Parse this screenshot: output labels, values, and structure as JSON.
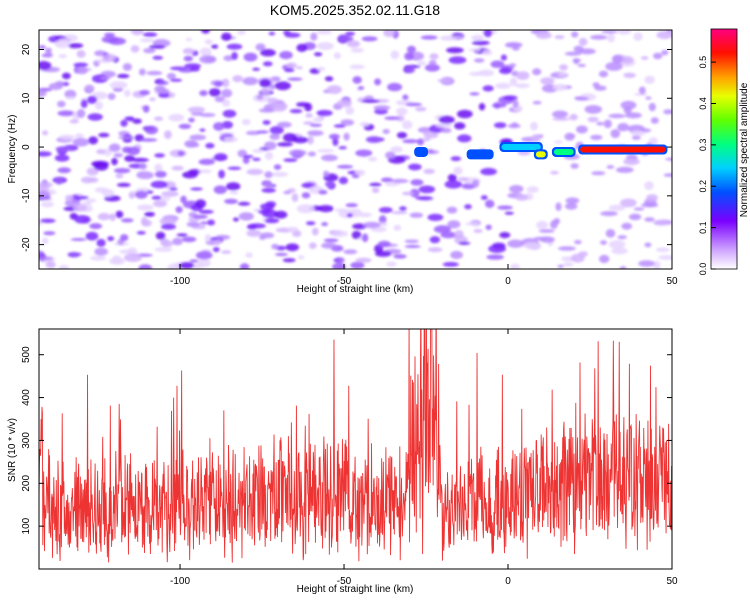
{
  "title": "KOM5.2025.352.02.11.G18",
  "chart_data": [
    {
      "type": "heatmap",
      "name": "spectrogram",
      "xlabel": "Height of straight line (km)",
      "ylabel": "Frequency (Hz)",
      "xlim": [
        -143,
        50
      ],
      "ylim": [
        -25,
        24
      ],
      "xticks": [
        -100,
        -50,
        0,
        50
      ],
      "yticks": [
        -20,
        -10,
        0,
        10,
        20
      ],
      "colorbar": {
        "label": "Normalized spectral amplitude",
        "range": [
          0.0,
          0.58
        ],
        "ticks": [
          0.0,
          0.1,
          0.2,
          0.3,
          0.4,
          0.5
        ],
        "tick_labels": [
          "0.0",
          "0.1",
          "0.2",
          "0.3",
          "0.4",
          "0.5"
        ]
      },
      "ridge": {
        "description": "strong narrow signal near 0 Hz",
        "segments": [
          {
            "x": [
              -28,
              -25
            ],
            "y": -1,
            "value": 0.2
          },
          {
            "x": [
              -12,
              -5
            ],
            "y": -1.5,
            "value": 0.22
          },
          {
            "x": [
              -2,
              10
            ],
            "y": 0,
            "value": 0.25
          },
          {
            "x": 10,
            "y": -1.5,
            "value": 0.42
          },
          {
            "x": [
              14,
              20
            ],
            "y": -1,
            "value": 0.3
          },
          {
            "x": [
              22,
              48
            ],
            "y": -0.5,
            "value": 0.55
          }
        ]
      }
    },
    {
      "type": "line",
      "name": "snr",
      "xlabel": "Height of straight line (km)",
      "ylabel": "SNR (10 * v/v)",
      "xlim": [
        -143,
        50
      ],
      "ylim": [
        0,
        560
      ],
      "xticks": [
        -100,
        -50,
        0,
        50
      ],
      "yticks": [
        100,
        200,
        300,
        400,
        500
      ],
      "color": "#ee3333",
      "series_summary": [
        {
          "x": -140,
          "y": 140
        },
        {
          "x": -120,
          "y": 145
        },
        {
          "x": -100,
          "y": 145
        },
        {
          "x": -80,
          "y": 160
        },
        {
          "x": -60,
          "y": 175
        },
        {
          "x": -40,
          "y": 155
        },
        {
          "x": -32,
          "y": 160
        },
        {
          "x": -28,
          "y": 330
        },
        {
          "x": -25,
          "y": 430
        },
        {
          "x": -22,
          "y": 390
        },
        {
          "x": -20,
          "y": 120
        },
        {
          "x": -10,
          "y": 150
        },
        {
          "x": 0,
          "y": 165
        },
        {
          "x": 20,
          "y": 190
        },
        {
          "x": 40,
          "y": 210
        },
        {
          "x": 50,
          "y": 205
        }
      ]
    }
  ]
}
